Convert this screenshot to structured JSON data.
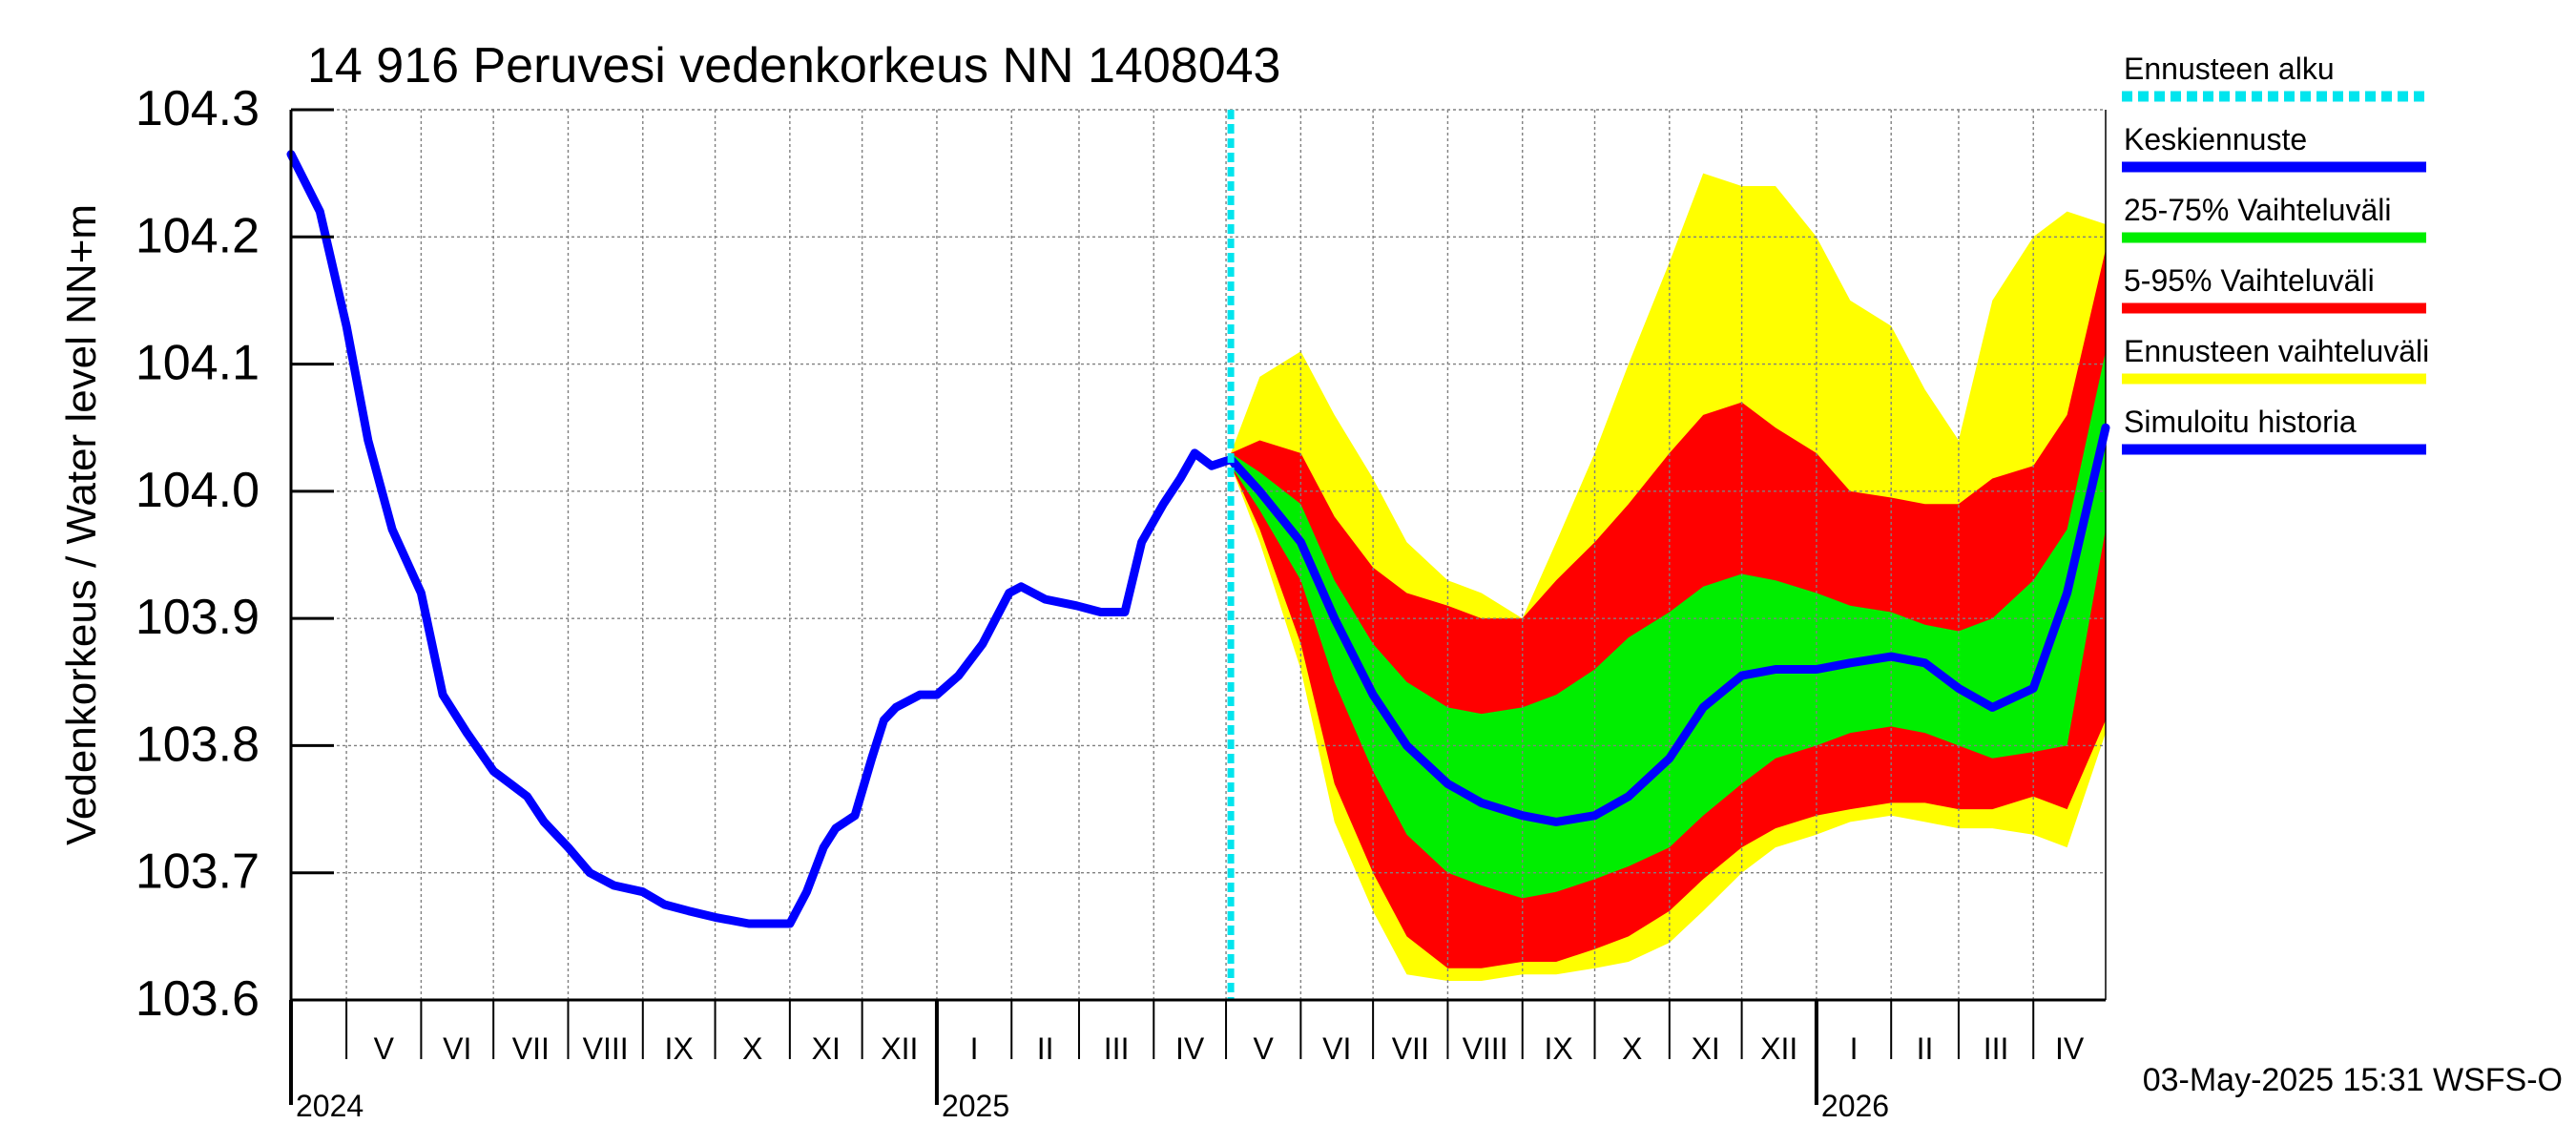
{
  "chart_data": {
    "type": "line",
    "title": "14 916 Peruvesi vedenkorkeus NN 1408043",
    "ylabel": "Vedenkorkeus / Water level   NN+m",
    "xlabel": "",
    "ylim": [
      103.6,
      104.3
    ],
    "yticks": [
      "103.6",
      "103.7",
      "103.8",
      "103.9",
      "104.0",
      "104.1",
      "104.2",
      "104.3"
    ],
    "xlim": [
      "2024-04-08",
      "2026-05-01"
    ],
    "months": [
      {
        "label": "V",
        "start": "2024-05-01"
      },
      {
        "label": "VI",
        "start": "2024-06-01"
      },
      {
        "label": "VII",
        "start": "2024-07-01"
      },
      {
        "label": "VIII",
        "start": "2024-08-01"
      },
      {
        "label": "IX",
        "start": "2024-09-01"
      },
      {
        "label": "X",
        "start": "2024-10-01"
      },
      {
        "label": "XI",
        "start": "2024-11-01"
      },
      {
        "label": "XII",
        "start": "2024-12-01"
      },
      {
        "label": "I",
        "start": "2025-01-01"
      },
      {
        "label": "II",
        "start": "2025-02-01"
      },
      {
        "label": "III",
        "start": "2025-03-01"
      },
      {
        "label": "IV",
        "start": "2025-04-01"
      },
      {
        "label": "V",
        "start": "2025-05-01"
      },
      {
        "label": "VI",
        "start": "2025-06-01"
      },
      {
        "label": "VII",
        "start": "2025-07-01"
      },
      {
        "label": "VIII",
        "start": "2025-08-01"
      },
      {
        "label": "IX",
        "start": "2025-09-01"
      },
      {
        "label": "X",
        "start": "2025-10-01"
      },
      {
        "label": "XI",
        "start": "2025-11-01"
      },
      {
        "label": "XII",
        "start": "2025-12-01"
      },
      {
        "label": "I",
        "start": "2026-01-01"
      },
      {
        "label": "II",
        "start": "2026-02-01"
      },
      {
        "label": "III",
        "start": "2026-03-01"
      },
      {
        "label": "IV",
        "start": "2026-04-01"
      }
    ],
    "years": [
      {
        "label": "2024",
        "start": "2024-04-08"
      },
      {
        "label": "2025",
        "start": "2025-01-01"
      },
      {
        "label": "2026",
        "start": "2026-01-01"
      }
    ],
    "forecast_start": "2025-05-03",
    "footer": "03-May-2025 15:31 WSFS-O",
    "grid": true,
    "legend_position": "right",
    "legend": [
      {
        "label": "Ennusteen alku",
        "color": "#00e5ee",
        "style": "dotted"
      },
      {
        "label": "Keskiennuste",
        "color": "#0000ff",
        "style": "solid"
      },
      {
        "label": "25-75% Vaihteluväli",
        "color": "#00ee00",
        "style": "solid"
      },
      {
        "label": "5-95% Vaihteluväli",
        "color": "#ff0000",
        "style": "solid"
      },
      {
        "label": "Ennusteen vaihteluväli",
        "color": "#ffff00",
        "style": "solid"
      },
      {
        "label": "Simuloitu historia",
        "color": "#0000ff",
        "style": "solid"
      }
    ],
    "series": [
      {
        "name": "Simuloitu historia",
        "color": "#0000ff",
        "x": [
          "2024-04-08",
          "2024-04-20",
          "2024-05-01",
          "2024-05-10",
          "2024-05-20",
          "2024-06-01",
          "2024-06-10",
          "2024-06-20",
          "2024-07-01",
          "2024-07-08",
          "2024-07-15",
          "2024-07-22",
          "2024-08-01",
          "2024-08-10",
          "2024-08-20",
          "2024-09-01",
          "2024-09-10",
          "2024-09-20",
          "2024-10-01",
          "2024-10-15",
          "2024-11-01",
          "2024-11-08",
          "2024-11-15",
          "2024-11-20",
          "2024-11-28",
          "2024-12-05",
          "2024-12-10",
          "2024-12-15",
          "2024-12-25",
          "2025-01-01",
          "2025-01-10",
          "2025-01-20",
          "2025-01-31",
          "2025-02-05",
          "2025-02-15",
          "2025-02-28",
          "2025-03-10",
          "2025-03-20",
          "2025-03-27",
          "2025-04-05",
          "2025-04-12",
          "2025-04-18",
          "2025-04-25",
          "2025-05-03"
        ],
        "values": [
          104.265,
          104.22,
          104.13,
          104.04,
          103.97,
          103.92,
          103.84,
          103.81,
          103.78,
          103.77,
          103.76,
          103.74,
          103.72,
          103.7,
          103.69,
          103.685,
          103.675,
          103.67,
          103.665,
          103.66,
          103.66,
          103.685,
          103.72,
          103.735,
          103.745,
          103.79,
          103.82,
          103.83,
          103.84,
          103.84,
          103.855,
          103.88,
          103.92,
          103.925,
          103.915,
          103.91,
          103.905,
          103.905,
          103.96,
          103.99,
          104.01,
          104.03,
          104.02,
          104.025
        ]
      },
      {
        "name": "Keskiennuste",
        "color": "#0000ff",
        "x": [
          "2025-05-03",
          "2025-05-15",
          "2025-06-01",
          "2025-06-15",
          "2025-07-01",
          "2025-07-15",
          "2025-08-01",
          "2025-08-15",
          "2025-09-01",
          "2025-09-15",
          "2025-10-01",
          "2025-10-15",
          "2025-11-01",
          "2025-11-15",
          "2025-12-01",
          "2025-12-15",
          "2026-01-01",
          "2026-01-15",
          "2026-02-01",
          "2026-02-15",
          "2026-03-01",
          "2026-03-15",
          "2026-04-01",
          "2026-04-15",
          "2026-05-01"
        ],
        "values": [
          104.025,
          104.0,
          103.96,
          103.9,
          103.84,
          103.8,
          103.77,
          103.755,
          103.745,
          103.74,
          103.745,
          103.76,
          103.79,
          103.83,
          103.855,
          103.86,
          103.86,
          103.865,
          103.87,
          103.865,
          103.845,
          103.83,
          103.845,
          103.92,
          104.05
        ]
      }
    ],
    "bands": [
      {
        "name": "Ennusteen vaihteluväli",
        "color": "#ffff00",
        "x": [
          "2025-05-03",
          "2025-05-15",
          "2025-06-01",
          "2025-06-15",
          "2025-07-01",
          "2025-07-15",
          "2025-08-01",
          "2025-08-15",
          "2025-09-01",
          "2025-09-15",
          "2025-10-01",
          "2025-10-15",
          "2025-11-01",
          "2025-11-15",
          "2025-12-01",
          "2025-12-15",
          "2026-01-01",
          "2026-01-15",
          "2026-02-01",
          "2026-02-15",
          "2026-03-01",
          "2026-03-15",
          "2026-04-01",
          "2026-04-15",
          "2026-05-01"
        ],
        "low": [
          104.02,
          103.96,
          103.86,
          103.74,
          103.67,
          103.62,
          103.615,
          103.615,
          103.62,
          103.62,
          103.625,
          103.63,
          103.645,
          103.67,
          103.7,
          103.72,
          103.73,
          103.74,
          103.745,
          103.74,
          103.735,
          103.735,
          103.73,
          103.72,
          103.81
        ],
        "high": [
          104.03,
          104.09,
          104.11,
          104.06,
          104.01,
          103.96,
          103.93,
          103.92,
          103.9,
          103.96,
          104.03,
          104.1,
          104.18,
          104.25,
          104.24,
          104.24,
          104.2,
          104.15,
          104.13,
          104.08,
          104.04,
          104.15,
          104.2,
          104.22,
          104.21
        ]
      },
      {
        "name": "5-95% Vaihteluväli",
        "color": "#ff0000",
        "x": [
          "2025-05-03",
          "2025-05-15",
          "2025-06-01",
          "2025-06-15",
          "2025-07-01",
          "2025-07-15",
          "2025-08-01",
          "2025-08-15",
          "2025-09-01",
          "2025-09-15",
          "2025-10-01",
          "2025-10-15",
          "2025-11-01",
          "2025-11-15",
          "2025-12-01",
          "2025-12-15",
          "2026-01-01",
          "2026-01-15",
          "2026-02-01",
          "2026-02-15",
          "2026-03-01",
          "2026-03-15",
          "2026-04-01",
          "2026-04-15",
          "2026-05-01"
        ],
        "low": [
          104.02,
          103.97,
          103.88,
          103.77,
          103.7,
          103.65,
          103.625,
          103.625,
          103.63,
          103.63,
          103.64,
          103.65,
          103.67,
          103.695,
          103.72,
          103.735,
          103.745,
          103.75,
          103.755,
          103.755,
          103.75,
          103.75,
          103.76,
          103.75,
          103.82
        ],
        "high": [
          104.03,
          104.04,
          104.03,
          103.98,
          103.94,
          103.92,
          103.91,
          103.9,
          103.9,
          103.93,
          103.96,
          103.99,
          104.03,
          104.06,
          104.07,
          104.05,
          104.03,
          104.0,
          103.995,
          103.99,
          103.99,
          104.01,
          104.02,
          104.06,
          104.19
        ]
      },
      {
        "name": "25-75% Vaihteluväli",
        "color": "#00ee00",
        "x": [
          "2025-05-03",
          "2025-05-15",
          "2025-06-01",
          "2025-06-15",
          "2025-07-01",
          "2025-07-15",
          "2025-08-01",
          "2025-08-15",
          "2025-09-01",
          "2025-09-15",
          "2025-10-01",
          "2025-10-15",
          "2025-11-01",
          "2025-11-15",
          "2025-12-01",
          "2025-12-15",
          "2026-01-01",
          "2026-01-15",
          "2026-02-01",
          "2026-02-15",
          "2026-03-01",
          "2026-03-15",
          "2026-04-01",
          "2026-04-15",
          "2026-05-01"
        ],
        "low": [
          104.02,
          103.985,
          103.93,
          103.85,
          103.78,
          103.73,
          103.7,
          103.69,
          103.68,
          103.685,
          103.695,
          103.705,
          103.72,
          103.745,
          103.77,
          103.79,
          103.8,
          103.81,
          103.815,
          103.81,
          103.8,
          103.79,
          103.795,
          103.8,
          103.97
        ],
        "high": [
          104.03,
          104.015,
          103.99,
          103.93,
          103.88,
          103.85,
          103.83,
          103.825,
          103.83,
          103.84,
          103.86,
          103.885,
          103.905,
          103.925,
          103.935,
          103.93,
          103.92,
          103.91,
          103.905,
          103.895,
          103.89,
          103.9,
          103.93,
          103.97,
          104.11
        ]
      }
    ]
  }
}
